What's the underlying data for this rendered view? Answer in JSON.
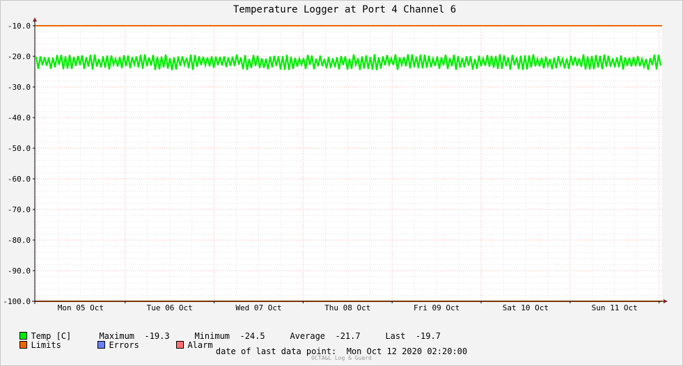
{
  "chart_data": {
    "type": "line",
    "title": "Temperature Logger at Port 4 Channel 6",
    "ylim": [
      -100.0,
      -10.0
    ],
    "y_ticks": [
      "-10.0",
      "-20.0",
      "-30.0",
      "-40.0",
      "-50.0",
      "-60.0",
      "-70.0",
      "-80.0",
      "-90.0",
      "-100.0"
    ],
    "x_ticks": [
      "Mon 05 Oct",
      "Tue 06 Oct",
      "Wed 07 Oct",
      "Thu 08 Oct",
      "Fri 09 Oct",
      "Sat 10 Oct",
      "Sun 11 Oct"
    ],
    "grid": true,
    "series": [
      {
        "name": "Temp [C]",
        "color": "#00ee00",
        "min": -24.5,
        "max": -19.3,
        "avg": -21.7,
        "last": -19.7
      },
      {
        "name": "Limits",
        "color": "#ee6600",
        "values": [
          -10.0,
          -100.0
        ]
      }
    ]
  },
  "legend": {
    "temp_label": "Temp [C]",
    "max_label": "Maximum",
    "max_value": "-19.3",
    "min_label": "Minimum",
    "min_value": "-24.5",
    "avg_label": "Average",
    "avg_value": "-21.7",
    "last_label": "Last",
    "last_value": "-19.7",
    "limits_label": "Limits",
    "errors_label": "Errors",
    "alarm_label": "Alarm",
    "colors": {
      "temp": "#00ee00",
      "limits": "#ee6600",
      "errors": "#6a7fff",
      "alarm": "#ff7070"
    }
  },
  "footer": {
    "last_point_label": "date of last data point:",
    "last_point_value": "Mon Oct 12 2020 02:20:00",
    "credit": "OCTA&L Log & Guard"
  }
}
